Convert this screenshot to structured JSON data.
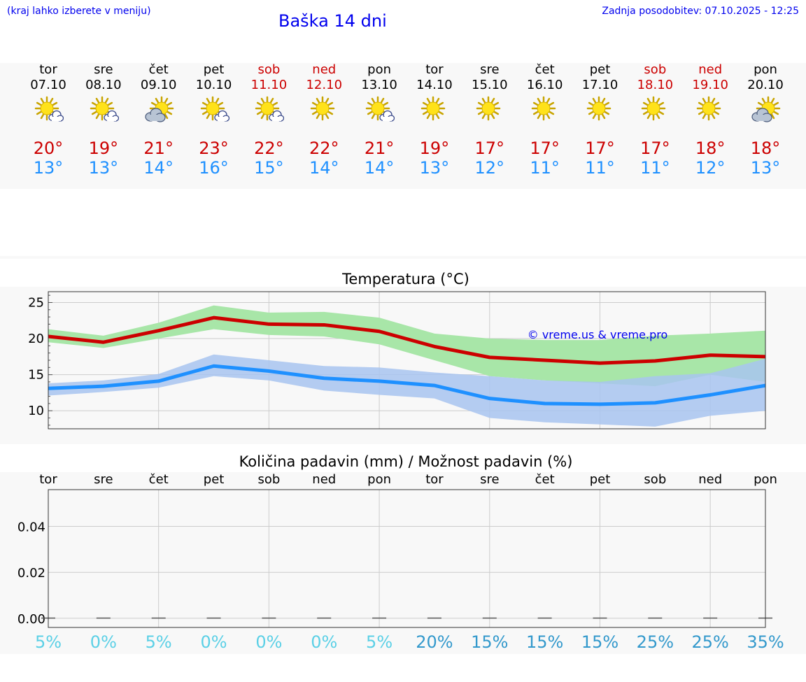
{
  "header": {
    "menu_hint": "(kraj lahko izberete v meniju)",
    "title": "Baška 14 dni",
    "updated": "Zadnja posodobitev: 07.10.2025 - 12:25"
  },
  "days": [
    {
      "wd": "tor",
      "date": "07.10",
      "weekend": false,
      "icon": "sun-cloud-icon",
      "max": "20°",
      "min": "13°"
    },
    {
      "wd": "sre",
      "date": "08.10",
      "weekend": false,
      "icon": "sun-cloud-icon",
      "max": "19°",
      "min": "13°"
    },
    {
      "wd": "čet",
      "date": "09.10",
      "weekend": false,
      "icon": "cloud-sun-icon",
      "max": "21°",
      "min": "14°"
    },
    {
      "wd": "pet",
      "date": "10.10",
      "weekend": false,
      "icon": "sun-cloud-icon",
      "max": "23°",
      "min": "16°"
    },
    {
      "wd": "sob",
      "date": "11.10",
      "weekend": true,
      "icon": "sun-cloud-icon",
      "max": "22°",
      "min": "15°"
    },
    {
      "wd": "ned",
      "date": "12.10",
      "weekend": true,
      "icon": "sun-icon",
      "max": "22°",
      "min": "14°"
    },
    {
      "wd": "pon",
      "date": "13.10",
      "weekend": false,
      "icon": "sun-cloud-icon",
      "max": "21°",
      "min": "14°"
    },
    {
      "wd": "tor",
      "date": "14.10",
      "weekend": false,
      "icon": "sun-icon",
      "max": "19°",
      "min": "13°"
    },
    {
      "wd": "sre",
      "date": "15.10",
      "weekend": false,
      "icon": "sun-icon",
      "max": "17°",
      "min": "12°"
    },
    {
      "wd": "čet",
      "date": "16.10",
      "weekend": false,
      "icon": "sun-icon",
      "max": "17°",
      "min": "11°"
    },
    {
      "wd": "pet",
      "date": "17.10",
      "weekend": false,
      "icon": "sun-icon",
      "max": "17°",
      "min": "11°"
    },
    {
      "wd": "sob",
      "date": "18.10",
      "weekend": true,
      "icon": "sun-icon",
      "max": "17°",
      "min": "11°"
    },
    {
      "wd": "ned",
      "date": "19.10",
      "weekend": true,
      "icon": "sun-icon",
      "max": "18°",
      "min": "12°"
    },
    {
      "wd": "pon",
      "date": "20.10",
      "weekend": false,
      "icon": "cloud-sun-icon",
      "max": "18°",
      "min": "13°"
    }
  ],
  "colors": {
    "max": "#cc0000",
    "min": "#1e90ff",
    "band_max": "#a8e6a8",
    "band_min": "#a8c4f0",
    "pct_low": "#5bd0e6",
    "pct_high": "#3399cc"
  },
  "chart_data": [
    {
      "type": "line",
      "title": "Temperatura (°C)",
      "watermark": "© vreme.us & vreme.pro",
      "ylim": [
        7.5,
        26.5
      ],
      "yticks": [
        "10",
        "15",
        "20",
        "25"
      ],
      "x": [
        0,
        1,
        2,
        3,
        4,
        5,
        6,
        7,
        8,
        9,
        10,
        11,
        12,
        13
      ],
      "series": [
        {
          "name": "max",
          "values": [
            20.3,
            19.5,
            21.1,
            22.9,
            22.0,
            21.9,
            21.0,
            18.9,
            17.4,
            17.0,
            16.6,
            16.9,
            17.7,
            17.5
          ],
          "band_low": [
            19.5,
            18.7,
            20.0,
            21.3,
            20.5,
            20.3,
            19.2,
            17.0,
            14.8,
            14.2,
            13.8,
            13.4,
            15.0,
            14.0
          ],
          "band_high": [
            21.3,
            20.4,
            22.2,
            24.6,
            23.6,
            23.7,
            22.9,
            20.7,
            20.0,
            19.8,
            19.8,
            20.4,
            20.7,
            21.1
          ]
        },
        {
          "name": "min",
          "values": [
            13.1,
            13.4,
            14.1,
            16.2,
            15.5,
            14.5,
            14.1,
            13.5,
            11.7,
            11.0,
            10.9,
            11.1,
            12.2,
            13.5
          ],
          "band_low": [
            12.1,
            12.6,
            13.2,
            14.8,
            14.2,
            12.8,
            12.2,
            11.7,
            9.0,
            8.4,
            8.1,
            7.8,
            9.3,
            10.0
          ],
          "band_high": [
            13.8,
            14.2,
            15.1,
            17.8,
            17.0,
            16.2,
            16.0,
            15.3,
            14.8,
            14.2,
            14.0,
            14.8,
            15.2,
            17.2
          ]
        }
      ]
    },
    {
      "type": "bar",
      "title": "Količina padavin (mm) / Možnost padavin (%)",
      "categories": [
        "tor",
        "sre",
        "čet",
        "pet",
        "sob",
        "ned",
        "pon",
        "tor",
        "sre",
        "čet",
        "pet",
        "sob",
        "ned",
        "pon"
      ],
      "values": [
        0,
        0,
        0,
        0,
        0,
        0,
        0,
        0,
        0,
        0,
        0,
        0,
        0,
        0
      ],
      "ylim": [
        -0.004,
        0.056
      ],
      "yticks": [
        "0.00",
        "0.02",
        "0.04"
      ],
      "chance": [
        "5%",
        "0%",
        "5%",
        "0%",
        "0%",
        "0%",
        "5%",
        "20%",
        "15%",
        "15%",
        "15%",
        "25%",
        "25%",
        "35%"
      ],
      "chance_values": [
        5,
        0,
        5,
        0,
        0,
        0,
        5,
        20,
        15,
        15,
        15,
        25,
        25,
        35
      ]
    }
  ]
}
